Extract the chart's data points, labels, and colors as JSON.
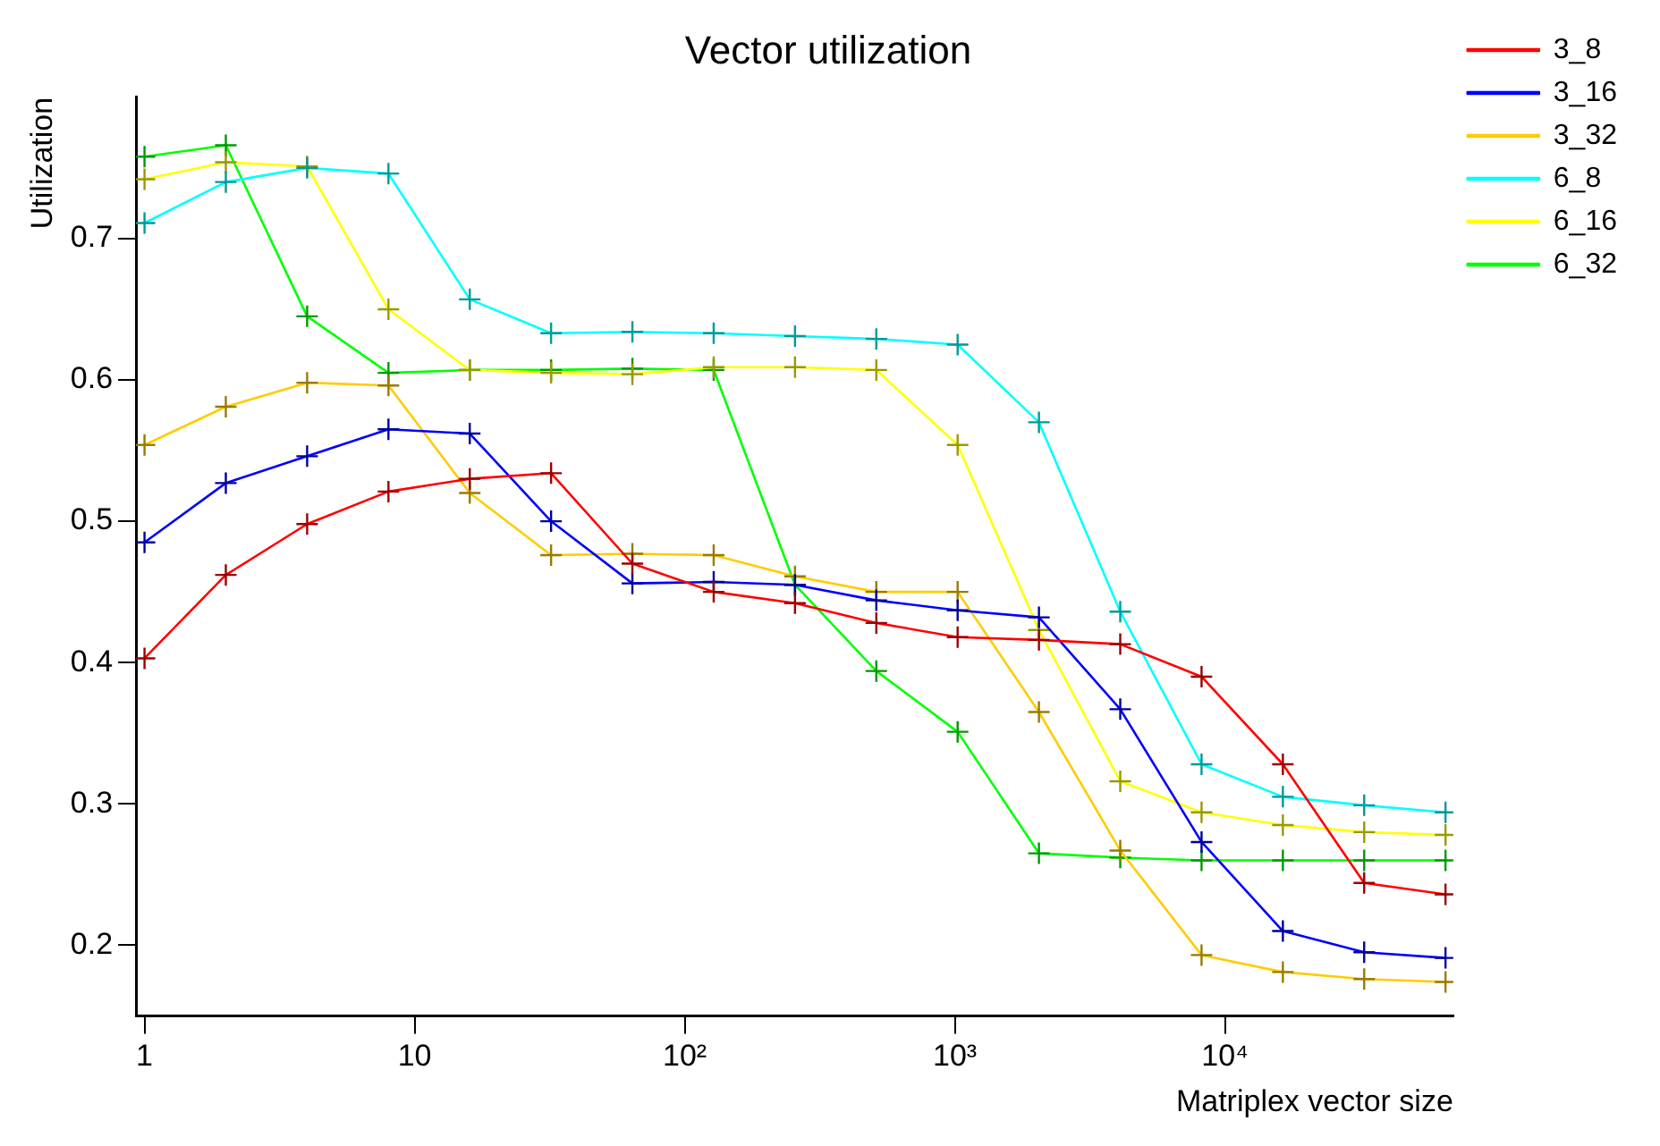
{
  "chart_data": {
    "type": "line",
    "title": "Vector utilization",
    "xlabel": "Matriplex vector size",
    "ylabel": "Utilization",
    "x": [
      1,
      2,
      4,
      8,
      16,
      32,
      64,
      128,
      256,
      512,
      1024,
      2048,
      4096,
      8192,
      16384,
      32768,
      65536
    ],
    "series": [
      {
        "name": "3_8",
        "color": "#ff0000",
        "values": [
          0.403,
          0.462,
          0.498,
          0.521,
          0.53,
          0.534,
          0.47,
          0.45,
          0.442,
          0.428,
          0.418,
          0.416,
          0.413,
          0.39,
          0.328,
          0.244,
          0.236
        ]
      },
      {
        "name": "3_16",
        "color": "#0000ff",
        "values": [
          0.485,
          0.527,
          0.546,
          0.565,
          0.562,
          0.5,
          0.456,
          0.457,
          0.455,
          0.444,
          0.437,
          0.432,
          0.367,
          0.273,
          0.21,
          0.195,
          0.191
        ]
      },
      {
        "name": "3_32",
        "color": "#ffcc00",
        "values": [
          0.554,
          0.581,
          0.598,
          0.596,
          0.52,
          0.476,
          0.477,
          0.476,
          0.461,
          0.45,
          0.45,
          0.365,
          0.267,
          0.193,
          0.181,
          0.176,
          0.174
        ]
      },
      {
        "name": "6_8",
        "color": "#00ffff",
        "values": [
          0.711,
          0.74,
          0.75,
          0.746,
          0.657,
          0.633,
          0.634,
          0.633,
          0.631,
          0.629,
          0.625,
          0.57,
          0.436,
          0.328,
          0.305,
          0.299,
          0.294
        ]
      },
      {
        "name": "6_16",
        "color": "#ffff00",
        "values": [
          0.742,
          0.754,
          0.751,
          0.65,
          0.607,
          0.605,
          0.604,
          0.609,
          0.609,
          0.607,
          0.554,
          0.423,
          0.316,
          0.294,
          0.285,
          0.28,
          0.278
        ]
      },
      {
        "name": "6_32",
        "color": "#00ff00",
        "values": [
          0.758,
          0.766,
          0.645,
          0.605,
          0.607,
          0.607,
          0.608,
          0.607,
          0.455,
          0.394,
          0.351,
          0.265,
          0.262,
          0.26,
          0.26,
          0.26,
          0.26
        ]
      }
    ],
    "log": "x",
    "xlim": [
      0.93,
      70000
    ],
    "xticks": [
      1,
      10,
      {
        "value": 100,
        "label": "10²"
      },
      {
        "value": 1000,
        "label": "10³"
      },
      {
        "value": 10000,
        "label": "10⁴"
      }
    ],
    "ylim": [
      0.15,
      0.8
    ],
    "yticks": [
      0.2,
      0.3,
      0.4,
      0.5,
      0.6,
      0.7
    ],
    "legend": "top right",
    "marker": "cross",
    "line_style": "solid"
  }
}
